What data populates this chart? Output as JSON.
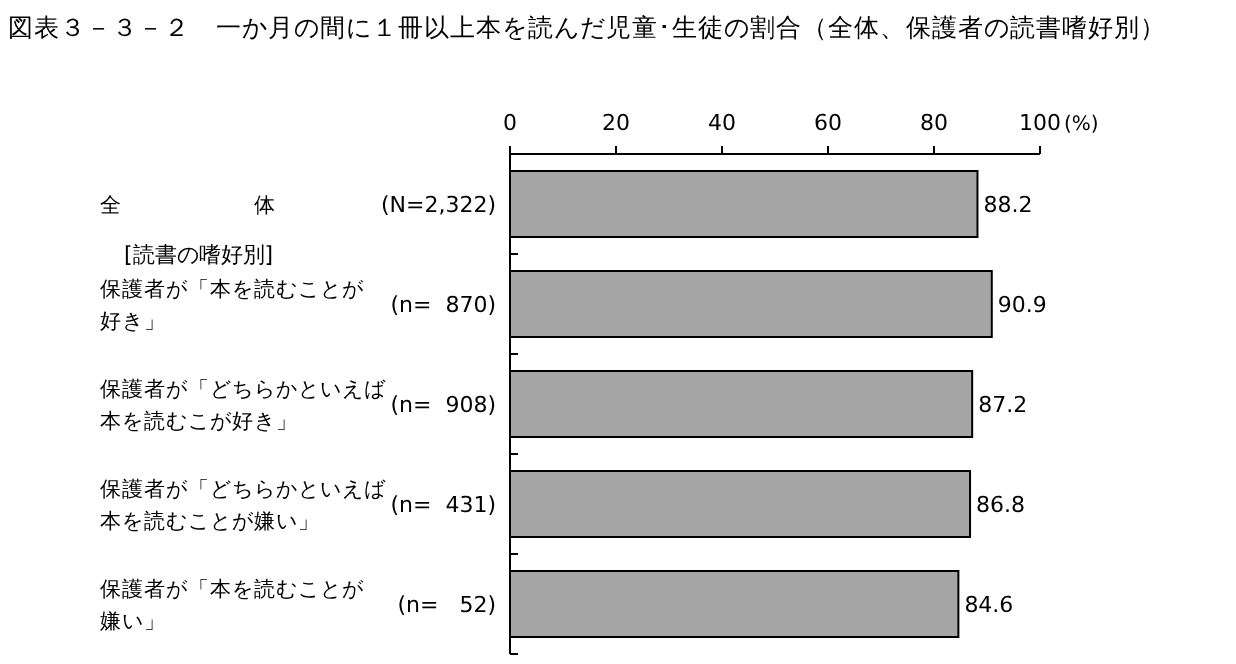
{
  "chart_data": {
    "type": "bar",
    "orientation": "horizontal",
    "title": "図表３－３－２　一か月の間に１冊以上本を読んだ児童･生徒の割合（全体、保護者の読書嗜好別）",
    "xlabel": "(%)",
    "categories": [
      "全　　　　　　体",
      "保護者が「本を読むことが好き」",
      "保護者が「どちらかといえば本を読むこが好き」",
      "保護者が「どちらかといえば本を読むことが嫌い」",
      "保護者が「本を読むことが嫌い」"
    ],
    "values": [
      88.2,
      90.9,
      87.2,
      86.8,
      84.6
    ],
    "color": "#a6a6a6",
    "xlim": [
      0,
      100
    ],
    "xticks": [
      0,
      20,
      40,
      60,
      80,
      100
    ],
    "data_labels": true,
    "annotations": [
      "(N=2,322)",
      "(n=  870)",
      "(n=  908)",
      "(n=  431)",
      "(n=   52)",
      "[読書の嗜好別]"
    ]
  }
}
